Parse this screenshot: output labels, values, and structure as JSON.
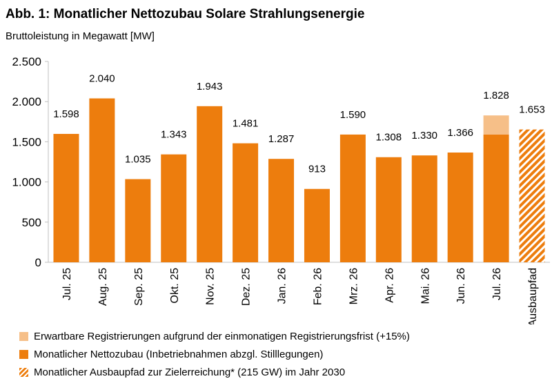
{
  "title": "Abb. 1: Monatlicher Nettozubau Solare Strahlungsenergie",
  "subtitle": "Bruttoleistung in Megawatt [MW]",
  "colors": {
    "base": "#ed7d0d",
    "expected": "#f6bf88",
    "path_stripe": "#ed7d0d"
  },
  "chart_data": {
    "type": "bar",
    "stacked": true,
    "categories": [
      "Jul. 25",
      "Aug. 25",
      "Sep. 25",
      "Okt. 25",
      "Nov. 25",
      "Dez. 25",
      "Jan. 26",
      "Feb. 26",
      "Mrz. 26",
      "Apr. 26",
      "Mai. 26",
      "Jun. 26",
      "Jul. 26",
      "Ausbaupfad"
    ],
    "series": [
      {
        "name": "Monatlicher Nettozubau (Inbetriebnahmen abzgl. Stilllegungen)",
        "color": "#ed7d0d",
        "pattern": "solid",
        "values": [
          1598,
          2040,
          1035,
          1343,
          1943,
          1481,
          1287,
          913,
          1590,
          1308,
          1330,
          1366,
          1590,
          null
        ]
      },
      {
        "name": "Erwartbare Registrierungen aufgrund der einmonatigen Registrierungsfrist (+15%)",
        "color": "#f6bf88",
        "pattern": "solid",
        "values": [
          null,
          null,
          null,
          null,
          null,
          null,
          null,
          null,
          null,
          null,
          null,
          null,
          238,
          null
        ]
      },
      {
        "name": "Monatlicher Ausbaupfad zur Zielerreichung* (215 GW) im Jahr 2030",
        "color": "#ed7d0d",
        "pattern": "hatched",
        "values": [
          null,
          null,
          null,
          null,
          null,
          null,
          null,
          null,
          null,
          null,
          null,
          null,
          null,
          1653
        ]
      }
    ],
    "data_labels": [
      "1.598",
      "2.040",
      "1.035",
      "1.343",
      "1.943",
      "1.481",
      "1.287",
      "913",
      "1.590",
      "1.308",
      "1.330",
      "1.366",
      "1.828",
      "1.653"
    ],
    "y_ticks": [
      0,
      500,
      1000,
      1500,
      2000,
      2500
    ],
    "y_tick_labels": [
      "0",
      "500",
      "1.000",
      "1.500",
      "2.000",
      "2.500"
    ],
    "ylim": [
      0,
      2500
    ],
    "grid": false,
    "legend_position": "bottom-left"
  }
}
